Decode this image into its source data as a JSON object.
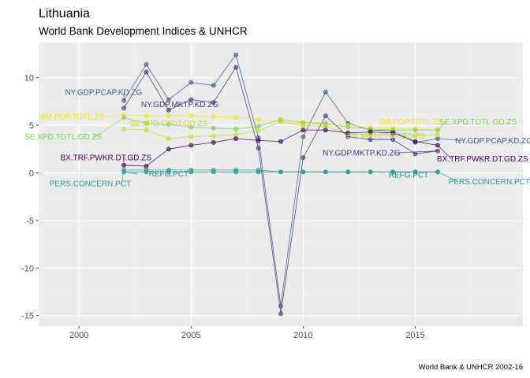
{
  "title": "Lithuania",
  "subtitle": "World Bank Development Indices & UNHCR",
  "caption": "World Bank & UNHCR 2002-16",
  "chart_data": {
    "type": "line",
    "xlim": [
      1998.2,
      2019.8
    ],
    "ylim": [
      -16.1,
      13.7
    ],
    "x_ticks": [
      2000,
      2005,
      2010,
      2015
    ],
    "y_ticks": [
      -15,
      -10,
      -5,
      0,
      5,
      10
    ],
    "grid": true,
    "legend": "none",
    "background": "#ebebeb",
    "series": [
      {
        "name": "NY.GDP.PCAP.KD.ZG",
        "color": "#3b5b8c",
        "x": [
          2002,
          2003,
          2004,
          2005,
          2006,
          2007,
          2008,
          2009,
          2010,
          2011,
          2012,
          2013,
          2014,
          2015,
          2016
        ],
        "y": [
          7.6,
          11.4,
          7.7,
          9.5,
          9.2,
          12.4,
          3.7,
          -14.0,
          3.8,
          8.5,
          5.2,
          4.5,
          4.4,
          3.2,
          3.6
        ]
      },
      {
        "name": "NY.GDP.MKTP.KD.ZG",
        "color": "#46327e",
        "x": [
          2002,
          2003,
          2004,
          2005,
          2006,
          2007,
          2008,
          2009,
          2010,
          2011,
          2012,
          2013,
          2014,
          2015,
          2016
        ],
        "y": [
          6.8,
          10.6,
          6.6,
          7.7,
          7.4,
          11.1,
          2.6,
          -14.8,
          1.6,
          6.0,
          3.8,
          3.5,
          3.5,
          2.0,
          2.3
        ]
      },
      {
        "name": "SM.POP.TOTL.ZS",
        "color": "#f2e51d",
        "x": [
          2002,
          2003,
          2004,
          2005,
          2006,
          2007,
          2008,
          2009,
          2010,
          2011,
          2012,
          2013,
          2014,
          2015,
          2016
        ],
        "y": [
          6.1,
          6.0,
          6.0,
          6.0,
          5.9,
          5.8,
          5.6,
          5.4,
          5.2,
          5.1,
          5.0,
          4.8,
          4.7,
          4.6,
          4.5
        ]
      },
      {
        "name": "SE.XPD.TOTL.GD.ZS",
        "color": "#7ad151",
        "x": [
          2002,
          2003,
          2004,
          2005,
          2006,
          2007,
          2008,
          2009,
          2010,
          2011,
          2012,
          2013,
          2014,
          2015,
          2016
        ],
        "y": [
          5.8,
          5.2,
          5.1,
          4.8,
          4.7,
          4.6,
          4.9,
          5.6,
          5.3,
          5.2,
          4.8,
          4.6,
          4.5,
          4.5,
          4.5
        ]
      },
      {
        "name": "SE.XPD.CTOT.GD.ZS",
        "color": "#bddf26",
        "x": [
          2002,
          2003,
          2004,
          2005,
          2006,
          2007,
          2008,
          2009,
          2010,
          2011,
          2012,
          2013,
          2014,
          2015,
          2016
        ],
        "y": [
          4.6,
          4.5,
          3.6,
          3.8,
          3.9,
          4.0,
          4.4,
          5.4,
          5.0,
          4.9,
          4.1,
          4.0,
          4.0,
          3.9,
          4.0
        ]
      },
      {
        "name": "BX.TRF.PWKR.DT.GD.ZS",
        "color": "#440154",
        "x": [
          2002,
          2003,
          2004,
          2005,
          2006,
          2007,
          2008,
          2009,
          2010,
          2011,
          2012,
          2013,
          2014,
          2015,
          2016
        ],
        "y": [
          0.8,
          0.7,
          2.5,
          2.9,
          3.2,
          3.6,
          3.4,
          3.3,
          4.5,
          4.5,
          4.2,
          4.3,
          4.2,
          3.3,
          2.9
        ]
      },
      {
        "name": "REFG.PCT",
        "color": "#21908c",
        "x": [
          2002,
          2003,
          2004,
          2005,
          2006,
          2007,
          2008,
          2009,
          2010,
          2011,
          2012,
          2013,
          2014,
          2015,
          2016
        ],
        "y": [
          0.1,
          0.1,
          0.1,
          0.1,
          0.1,
          0.1,
          0.1,
          0.1,
          0.1,
          0.1,
          0.1,
          0.1,
          0.1,
          0.1,
          0.1
        ]
      },
      {
        "name": "PERS.CONCERN.PCT",
        "color": "#2a9d8f",
        "x": [
          2002,
          2003,
          2004,
          2005,
          2006,
          2007,
          2008,
          2009,
          2010,
          2011,
          2012,
          2013,
          2014,
          2015,
          2016
        ],
        "y": [
          0.3,
          0.3,
          0.3,
          0.3,
          0.3,
          0.3,
          0.3,
          0.1,
          0.1,
          0.1,
          0.1,
          0.1,
          0.1,
          0.1,
          0.1
        ]
      }
    ],
    "annotations": [
      {
        "text": "NY.GDP.PCAP.KD.ZG",
        "color": "#3b5b8c",
        "x": 2001.1,
        "y": 8.5,
        "ax": 2002,
        "ay": 7.6
      },
      {
        "text": "NY.GDP.MKTP.KD.ZG",
        "color": "#46327e",
        "x": 2004.5,
        "y": 7.2,
        "ax": 2004,
        "ay": 6.6
      },
      {
        "text": "SM.POP.TOTL.ZS",
        "color": "#f2e51d",
        "x": 1999.7,
        "y": 5.9,
        "ax": 2002,
        "ay": 6.1
      },
      {
        "text": "SE.XPD.CTOT.GD.ZS",
        "color": "#bddf26",
        "x": 2004.0,
        "y": 5.2,
        "ax": 2003,
        "ay": 4.5
      },
      {
        "text": "SE.XPD.TOTL.GD.ZS",
        "color": "#7ad151",
        "x": 1999.3,
        "y": 3.8,
        "ax": 2002,
        "ay": 5.8
      },
      {
        "text": "BX.TRF.PWKR.DT.GD.ZS",
        "color": "#440154",
        "x": 2001.2,
        "y": 1.6,
        "ax": 2002,
        "ay": 0.8
      },
      {
        "text": "REFG.PCT",
        "color": "#21908c",
        "x": 2004.0,
        "y": -0.1,
        "ax": 2002,
        "ay": 0.1
      },
      {
        "text": "PERS.CONCERN.PCT",
        "color": "#2a9d8f",
        "x": 2000.5,
        "y": -1.1,
        "ax": 2002,
        "ay": 0.3
      },
      {
        "text": "SM.POP.TOTL.ZS",
        "color": "#f2e51d",
        "x": 2014.8,
        "y": 5.4,
        "ax": 2016,
        "ay": 4.5
      },
      {
        "text": "SE.XPD.TOTL.GD.ZS",
        "color": "#7ad151",
        "x": 2017.8,
        "y": 5.4,
        "ax": 2016,
        "ay": 4.5
      },
      {
        "text": "SE.XPD.CTOT.GD.ZS",
        "color": "#bddf26",
        "x": 2013.7,
        "y": 3.9,
        "ax": 2016,
        "ay": 4.0
      },
      {
        "text": "NY.GDP.PCAP.KD.ZG",
        "color": "#3b5b8c",
        "x": 2018.5,
        "y": 3.4,
        "ax": 2016,
        "ay": 3.6
      },
      {
        "text": "NY.GDP.MKTP.KD.ZG",
        "color": "#46327e",
        "x": 2012.6,
        "y": 2.1,
        "ax": 2016,
        "ay": 2.3
      },
      {
        "text": "BX.TRF.PWKR.DT.GD.ZS",
        "color": "#440154",
        "x": 2018.0,
        "y": 1.5,
        "ax": 2016,
        "ay": 2.9
      },
      {
        "text": "REFG.PCT",
        "color": "#21908c",
        "x": 2014.7,
        "y": -0.2,
        "ax": 2016,
        "ay": 0.1
      },
      {
        "text": "PERS.CONCERN.PCT",
        "color": "#2a9d8f",
        "x": 2018.3,
        "y": -0.9,
        "ax": 2016,
        "ay": 0.1
      }
    ]
  }
}
